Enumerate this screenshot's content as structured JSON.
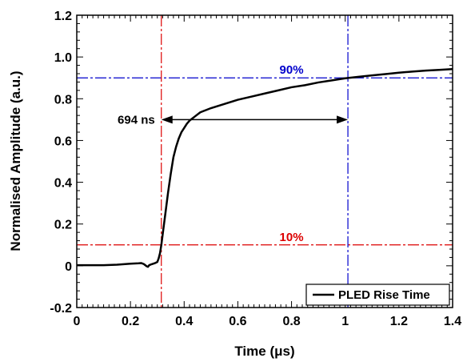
{
  "chart_data": {
    "type": "line",
    "xlabel": "Time (μs)",
    "ylabel": "Normalised Amplitude (a.u.)",
    "xlim": [
      0,
      1.4
    ],
    "ylim": [
      -0.2,
      1.2
    ],
    "x_ticks": [
      0,
      0.2,
      0.4,
      0.6,
      0.8,
      1.0,
      1.2,
      1.4
    ],
    "x_tick_labels": [
      "0",
      "0.2",
      "0.4",
      "0.6",
      "0.8",
      "1",
      "1.2",
      "1.4"
    ],
    "y_ticks": [
      -0.2,
      0,
      0.2,
      0.4,
      0.6,
      0.8,
      1.0,
      1.2
    ],
    "y_tick_labels": [
      "-0.2",
      "0",
      "0.2",
      "0.4",
      "0.6",
      "0.8",
      "1.0",
      "1.2"
    ],
    "grid": false,
    "legend_position": "bottom-right",
    "series": [
      {
        "name": "PLED Rise Time",
        "color": "#000000",
        "points": [
          [
            0.0,
            0.003
          ],
          [
            0.05,
            0.003
          ],
          [
            0.1,
            0.003
          ],
          [
            0.15,
            0.005
          ],
          [
            0.2,
            0.01
          ],
          [
            0.23,
            0.012
          ],
          [
            0.24,
            0.013
          ],
          [
            0.25,
            0.008
          ],
          [
            0.26,
            -0.002
          ],
          [
            0.265,
            -0.005
          ],
          [
            0.27,
            0.003
          ],
          [
            0.28,
            0.008
          ],
          [
            0.29,
            0.012
          ],
          [
            0.3,
            0.018
          ],
          [
            0.305,
            0.035
          ],
          [
            0.31,
            0.06
          ],
          [
            0.315,
            0.1
          ],
          [
            0.32,
            0.15
          ],
          [
            0.33,
            0.25
          ],
          [
            0.34,
            0.35
          ],
          [
            0.35,
            0.44
          ],
          [
            0.36,
            0.52
          ],
          [
            0.37,
            0.57
          ],
          [
            0.38,
            0.61
          ],
          [
            0.39,
            0.64
          ],
          [
            0.4,
            0.66
          ],
          [
            0.41,
            0.68
          ],
          [
            0.42,
            0.695
          ],
          [
            0.44,
            0.715
          ],
          [
            0.46,
            0.735
          ],
          [
            0.48,
            0.745
          ],
          [
            0.5,
            0.755
          ],
          [
            0.55,
            0.775
          ],
          [
            0.6,
            0.795
          ],
          [
            0.65,
            0.81
          ],
          [
            0.7,
            0.825
          ],
          [
            0.75,
            0.84
          ],
          [
            0.8,
            0.855
          ],
          [
            0.85,
            0.865
          ],
          [
            0.9,
            0.878
          ],
          [
            0.95,
            0.888
          ],
          [
            1.0,
            0.898
          ],
          [
            1.05,
            0.905
          ],
          [
            1.1,
            0.912
          ],
          [
            1.15,
            0.918
          ],
          [
            1.2,
            0.925
          ],
          [
            1.25,
            0.93
          ],
          [
            1.3,
            0.935
          ],
          [
            1.35,
            0.938
          ],
          [
            1.4,
            0.942
          ]
        ]
      }
    ],
    "reference_lines": [
      {
        "orientation": "horizontal",
        "value": 0.9,
        "color": "#0000cc",
        "label": "90%"
      },
      {
        "orientation": "horizontal",
        "value": 0.1,
        "color": "#dd0000",
        "label": "10%"
      },
      {
        "orientation": "vertical",
        "value": 0.315,
        "color": "#dd0000"
      },
      {
        "orientation": "vertical",
        "value": 1.01,
        "color": "#0000cc"
      }
    ],
    "annotation": {
      "text": "694 ns",
      "arrow_from": 0.315,
      "arrow_to": 1.01,
      "arrow_y": 0.7
    }
  }
}
